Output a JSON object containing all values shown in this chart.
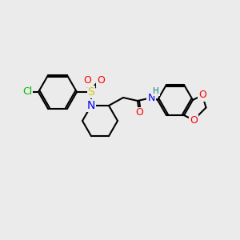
{
  "bg_color": "#ebebeb",
  "bond_color": "#000000",
  "bond_width": 1.5,
  "atom_colors": {
    "Cl": "#00bb00",
    "S": "#cccc00",
    "O": "#ff0000",
    "N": "#0000ff",
    "H": "#008080",
    "C": "#000000"
  },
  "figsize": [
    3.0,
    3.0
  ],
  "dpi": 100
}
